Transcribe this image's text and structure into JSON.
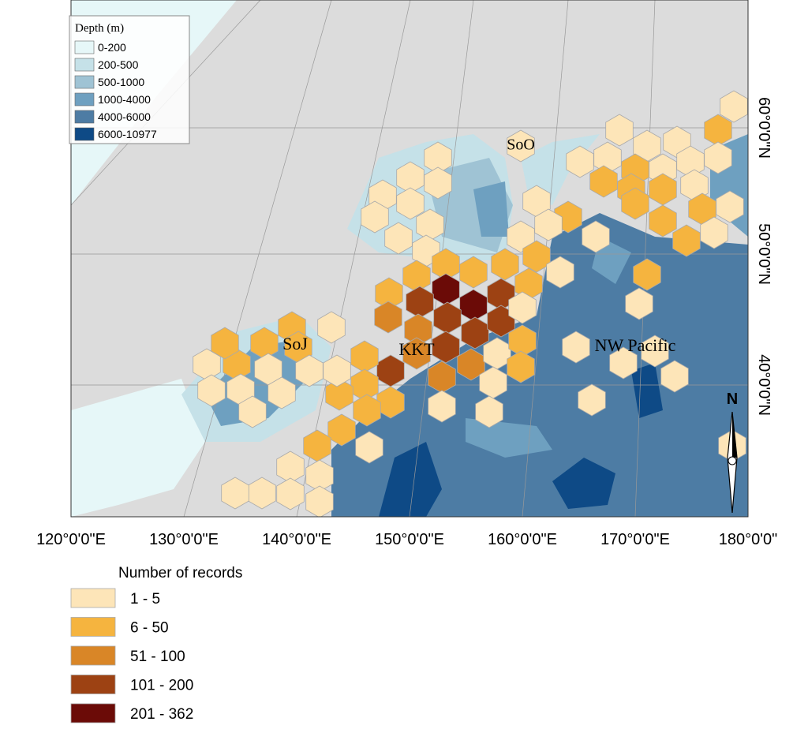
{
  "depth_legend": {
    "title": "Depth (m)",
    "items": [
      {
        "label": "0-200",
        "color": "#e6f7f8"
      },
      {
        "label": "200-500",
        "color": "#c5e1e8"
      },
      {
        "label": "500-1000",
        "color": "#9fc3d4"
      },
      {
        "label": "1000-4000",
        "color": "#6ea0c0"
      },
      {
        "label": "4000-6000",
        "color": "#4d7ca4"
      },
      {
        "label": "6000-10977",
        "color": "#0e4a86"
      }
    ]
  },
  "records_legend": {
    "title": "Number of records",
    "items": [
      {
        "label": "1 - 5",
        "color": "#fde5b8"
      },
      {
        "label": "6 - 50",
        "color": "#f5b43f"
      },
      {
        "label": "51 - 100",
        "color": "#d98627"
      },
      {
        "label": "101 - 200",
        "color": "#9d4213"
      },
      {
        "label": "201 - 362",
        "color": "#6b0b07"
      }
    ]
  },
  "region_labels": [
    "SoO",
    "SoJ",
    "KKT",
    "NW Pacific"
  ],
  "longitude_labels": [
    "120°0'0\"E",
    "130°0'0\"E",
    "140°0'0\"E",
    "150°0'0\"E",
    "160°0'0\"E",
    "170°0'0\"E",
    "180°0'0\""
  ],
  "latitude_labels": [
    "60°0'0\"N",
    "50°0'0\"N",
    "40°0'0\"N"
  ],
  "north_arrow": "N"
}
